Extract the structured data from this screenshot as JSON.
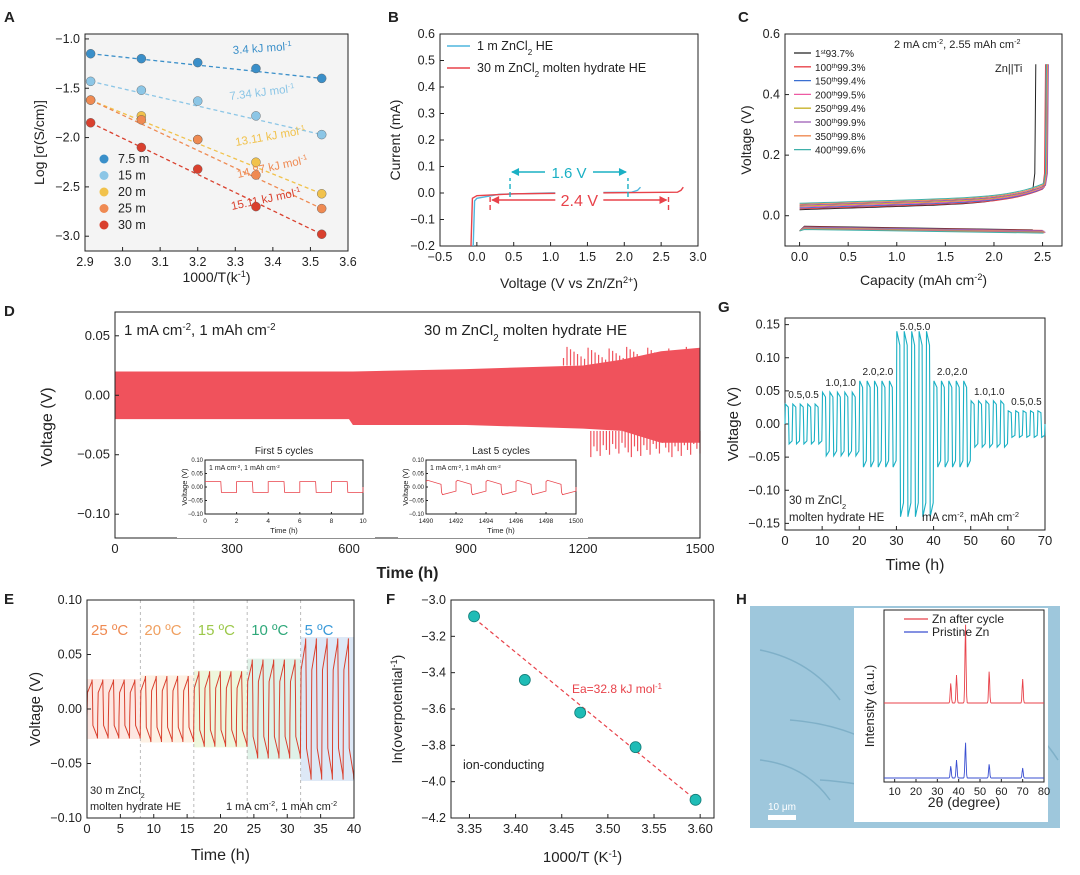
{
  "colors": {
    "blue": "#4fb6dd",
    "red": "#e8424a",
    "cyan": "#1ab0c4",
    "pink": "#ee5a64",
    "orange": "#ef8a52",
    "green": "#58b95e",
    "yellow": "#f1c24c",
    "text": "#222222"
  },
  "chart_data": [
    {
      "panel": "A",
      "type": "scatter",
      "xlabel": "1000/T(k",
      "xlabel_sup": "-1",
      "xlabel_end": ")",
      "ylabel": "Log [σ(S/cm)]",
      "xlim": [
        2.9,
        3.6
      ],
      "ylim": [
        -3.15,
        -0.95
      ],
      "xticks": [
        2.9,
        3.0,
        3.1,
        3.2,
        3.3,
        3.4,
        3.5,
        3.6
      ],
      "yticks": [
        -1.0,
        -1.5,
        -2.0,
        -2.5,
        -3.0
      ],
      "x": [
        2.915,
        3.05,
        3.2,
        3.355,
        3.53
      ],
      "series": [
        {
          "name": "7.5 m",
          "color": "#3a8fc9",
          "values": [
            -1.15,
            -1.2,
            -1.24,
            -1.3,
            -1.4
          ],
          "label": "3.4 kJ mol",
          "label_sup": "-1"
        },
        {
          "name": "15 m",
          "color": "#8cc6e6",
          "values": [
            -1.43,
            -1.52,
            -1.63,
            -1.78,
            -1.97
          ],
          "label": "7.34 kJ mol",
          "label_sup": "-1"
        },
        {
          "name": "20 m",
          "color": "#f1c24c",
          "values": [
            -1.62,
            -1.78,
            -2.02,
            -2.25,
            -2.57
          ],
          "label": "13.11 kJ mol",
          "label_sup": "-1"
        },
        {
          "name": "25 m",
          "color": "#ef8a52",
          "values": [
            -1.62,
            -1.82,
            -2.02,
            -2.38,
            -2.72
          ],
          "label": "14.87 kJ mol",
          "label_sup": "-1"
        },
        {
          "name": "30 m",
          "color": "#d9402e",
          "values": [
            -1.85,
            -2.1,
            -2.32,
            -2.7,
            -2.98
          ],
          "label": "15.11 kJ mol",
          "label_sup": "-1"
        }
      ]
    },
    {
      "panel": "B",
      "type": "line",
      "xlabel": "Voltage (V vs Zn/Zn",
      "xlabel_sup": "2+",
      "xlabel_end": ")",
      "ylabel": "Current (mA)",
      "xlim": [
        -0.5,
        3.0
      ],
      "ylim": [
        -0.2,
        0.6
      ],
      "xticks": [
        -0.5,
        0.0,
        0.5,
        1.0,
        1.5,
        2.0,
        2.5,
        3.0
      ],
      "yticks": [
        -0.2,
        -0.1,
        0.0,
        0.1,
        0.2,
        0.3,
        0.4,
        0.5,
        0.6
      ],
      "series": [
        {
          "name": "1 m ZnCl",
          "name_sub": "2",
          "name_end": " HE",
          "color": "#4fb6dd",
          "x": [
            -0.05,
            -0.03,
            0.0,
            0.3,
            1.0,
            2.1,
            2.18,
            2.22
          ],
          "values": [
            -0.2,
            -0.03,
            -0.02,
            -0.005,
            0.0,
            0.003,
            0.01,
            0.022
          ]
        },
        {
          "name": "30 m ZnCl",
          "name_sub": "2",
          "name_end": " molten hydrate HE",
          "color": "#e8424a",
          "x": [
            -0.08,
            -0.06,
            0.0,
            0.5,
            1.5,
            2.72,
            2.77,
            2.8
          ],
          "values": [
            -0.2,
            -0.02,
            -0.01,
            -0.003,
            0.0,
            0.003,
            0.01,
            0.022
          ]
        }
      ],
      "annotations": [
        {
          "text": "1.6 V",
          "color": "#1ab0c4",
          "from": 0.45,
          "to": 2.05
        },
        {
          "text": "2.4 V",
          "color": "#e8424a",
          "from": 0.18,
          "to": 2.6
        }
      ]
    },
    {
      "panel": "C",
      "type": "line",
      "xlabel": "Capacity (mAh cm",
      "xlabel_sup": "-2",
      "xlabel_end": ")",
      "ylabel": "Voltage (V)",
      "xlim": [
        -0.15,
        2.7
      ],
      "ylim": [
        -0.1,
        0.6
      ],
      "xticks": [
        0.0,
        0.5,
        1.0,
        1.5,
        2.0,
        2.5
      ],
      "yticks": [
        0.0,
        0.2,
        0.4,
        0.6
      ],
      "title": "2 mA cm",
      "title_sup": "-2",
      "title_mid": ", 2.55 mAh cm",
      "title_sup2": "-2",
      "label": "Zn||Ti",
      "legend": [
        {
          "cycle": "1",
          "sup": "st",
          "ce": "93.7%",
          "color": "#222222"
        },
        {
          "cycle": "100",
          "sup": "th",
          "ce": "99.3%",
          "color": "#e8424a"
        },
        {
          "cycle": "150",
          "sup": "th",
          "ce": "99.4%",
          "color": "#3a6fd1"
        },
        {
          "cycle": "200",
          "sup": "th",
          "ce": "99.5%",
          "color": "#ee5aa3"
        },
        {
          "cycle": "250",
          "sup": "th",
          "ce": "99.4%",
          "color": "#c7b22a"
        },
        {
          "cycle": "300",
          "sup": "th",
          "ce": "99.9%",
          "color": "#9a59b5"
        },
        {
          "cycle": "350",
          "sup": "th",
          "ce": "99.8%",
          "color": "#ef8a52"
        },
        {
          "cycle": "400",
          "sup": "th",
          "ce": "99.6%",
          "color": "#3fb0a9"
        }
      ],
      "charge_end": [
        2.4,
        2.5,
        2.51,
        2.52,
        2.52,
        2.53,
        2.52,
        2.51
      ]
    },
    {
      "panel": "D",
      "type": "line",
      "xlabel": "Time (h)",
      "ylabel": "Voltage (V)",
      "xlim": [
        0,
        1500
      ],
      "ylim": [
        -0.12,
        0.07
      ],
      "xticks": [
        0,
        300,
        600,
        900,
        1200,
        1500
      ],
      "yticks": [
        0.05,
        0.0,
        -0.05,
        -0.1
      ],
      "title_left": "1 mA cm",
      "title_left_sup": "-2",
      "title_left_mid": ", 1 mAh cm",
      "title_left_sup2": "-2",
      "title_right": "30 m ZnCl",
      "title_right_sub": "2",
      "title_right_end": " molten hydrate HE",
      "band": {
        "x": [
          0,
          300,
          600,
          610,
          900,
          1200,
          1300,
          1400,
          1500
        ],
        "upper": [
          0.02,
          0.02,
          0.02,
          0.02,
          0.022,
          0.025,
          0.03,
          0.037,
          0.04
        ],
        "lower": [
          -0.02,
          -0.02,
          -0.02,
          -0.025,
          -0.025,
          -0.028,
          -0.03,
          -0.04,
          -0.04
        ]
      },
      "inset1": {
        "title": "First 5 cycles",
        "label": "1 mA cm",
        "label_sup": "-2",
        "label_mid": ", 1 mAh cm",
        "label_sup2": "-2",
        "xlabel": "Time (h)",
        "ylabel": "Voltage (V)",
        "xticks": [
          0,
          2,
          4,
          6,
          8,
          10
        ],
        "yticks": [
          0.1,
          0.05,
          0.0,
          -0.05,
          -0.1
        ]
      },
      "inset2": {
        "title": "Last 5 cycles",
        "label": "1 mA cm",
        "label_sup": "-2",
        "label_mid": ", 1 mAh cm",
        "label_sup2": "-2",
        "xlabel": "Time (h)",
        "ylabel": "Voltage (V)",
        "xticks": [
          1490,
          1492,
          1494,
          1496,
          1498,
          1500
        ],
        "yticks": [
          0.1,
          0.05,
          0.0,
          -0.05,
          -0.1
        ]
      }
    },
    {
      "panel": "G",
      "type": "line",
      "xlabel": "Time (h)",
      "ylabel": "Voltage (V)",
      "xlim": [
        0,
        70
      ],
      "ylim": [
        -0.16,
        0.16
      ],
      "xticks": [
        0,
        10,
        20,
        30,
        40,
        50,
        60,
        70
      ],
      "yticks": [
        0.15,
        0.1,
        0.05,
        0.0,
        -0.05,
        -0.1,
        -0.15
      ],
      "segments": [
        {
          "label": "0.5,0.5",
          "start": 0,
          "end": 10,
          "amp": 0.03
        },
        {
          "label": "1.0,1.0",
          "start": 10,
          "end": 20,
          "amp": 0.048
        },
        {
          "label": "2.0,2.0",
          "start": 20,
          "end": 30,
          "amp": 0.065
        },
        {
          "label": "5.0,5.0",
          "start": 30,
          "end": 40,
          "amp": 0.14
        },
        {
          "label": "2.0,2.0",
          "start": 40,
          "end": 50,
          "amp": 0.065
        },
        {
          "label": "1.0,1.0",
          "start": 50,
          "end": 60,
          "amp": 0.035
        },
        {
          "label": "0.5,0.5",
          "start": 60,
          "end": 70,
          "amp": 0.02
        }
      ],
      "note1": "30 m ZnCl",
      "note1_sub": "2",
      "note2": "molten hydrate HE",
      "units": "mA cm",
      "units_sup": "-2",
      "units_mid": ", mAh cm",
      "units_sup2": "-2"
    },
    {
      "panel": "E",
      "type": "line",
      "xlabel": "Time (h)",
      "ylabel": "Voltage (V)",
      "xlim": [
        0,
        40
      ],
      "ylim": [
        -0.1,
        0.1
      ],
      "xticks": [
        0,
        5,
        10,
        15,
        20,
        25,
        30,
        35,
        40
      ],
      "yticks": [
        0.1,
        0.05,
        0.0,
        -0.05,
        -0.1
      ],
      "temps": [
        {
          "label": "25 ºC",
          "start": 0,
          "end": 8,
          "color": "#ef8a52",
          "amp": 0.025
        },
        {
          "label": "20 ºC",
          "start": 8,
          "end": 16,
          "color": "#f0a060",
          "amp": 0.028
        },
        {
          "label": "15 ºC",
          "start": 16,
          "end": 24,
          "color": "#9cc84a",
          "amp": 0.032
        },
        {
          "label": "10 ºC",
          "start": 24,
          "end": 32,
          "color": "#2fa87a",
          "amp": 0.042
        },
        {
          "label": "5 ºC",
          "start": 32,
          "end": 40,
          "color": "#3a9ad9",
          "amp": 0.06
        }
      ],
      "note1": "30 m ZnCl",
      "note1_sub": "2",
      "note2": "molten hydrate HE",
      "units": "1 mA cm",
      "units_sup": "-2",
      "units_mid": ", 1 mAh cm",
      "units_sup2": "-2"
    },
    {
      "panel": "F",
      "type": "scatter",
      "xlabel": "1000/T (K",
      "xlabel_sup": "-1",
      "xlabel_end": ")",
      "ylabel": "ln(overpotential",
      "ylabel_sup": "-1",
      "ylabel_end": ")",
      "xlim": [
        3.33,
        3.615
      ],
      "ylim": [
        -4.2,
        -3.0
      ],
      "xticks": [
        3.35,
        3.4,
        3.45,
        3.5,
        3.55,
        3.6
      ],
      "yticks": [
        -3.0,
        -3.2,
        -3.4,
        -3.6,
        -3.8,
        -4.0,
        -4.2
      ],
      "x": [
        3.355,
        3.41,
        3.47,
        3.53,
        3.595
      ],
      "values": [
        -3.09,
        -3.44,
        -3.62,
        -3.81,
        -4.1
      ],
      "fit_label": "Ea=32.8 kJ mol",
      "fit_label_sup": "-1",
      "note": "ion-conducting"
    },
    {
      "panel": "H",
      "type": "line",
      "xlabel": "2θ (degree)",
      "ylabel": "Intensity (a.u.)",
      "xlim": [
        5,
        80
      ],
      "xticks": [
        10,
        20,
        30,
        40,
        50,
        60,
        70,
        80
      ],
      "legend": [
        {
          "name": "Zn after cycle",
          "color": "#e8424a"
        },
        {
          "name": "Pristine Zn",
          "color": "#3a4fd1"
        }
      ],
      "peaks_after": [
        {
          "x": 36.3,
          "h": 0.25
        },
        {
          "x": 39,
          "h": 0.35
        },
        {
          "x": 43.2,
          "h": 1.0
        },
        {
          "x": 54.3,
          "h": 0.4
        },
        {
          "x": 70,
          "h": 0.3
        }
      ],
      "peaks_pristine": [
        {
          "x": 36.3,
          "h": 0.3
        },
        {
          "x": 39,
          "h": 0.45
        },
        {
          "x": 43.2,
          "h": 0.9
        },
        {
          "x": 54.3,
          "h": 0.35
        },
        {
          "x": 70,
          "h": 0.25
        }
      ],
      "scalebar": "10 μm"
    }
  ],
  "panel_letters": [
    "A",
    "B",
    "C",
    "D",
    "G",
    "E",
    "F",
    "H"
  ]
}
